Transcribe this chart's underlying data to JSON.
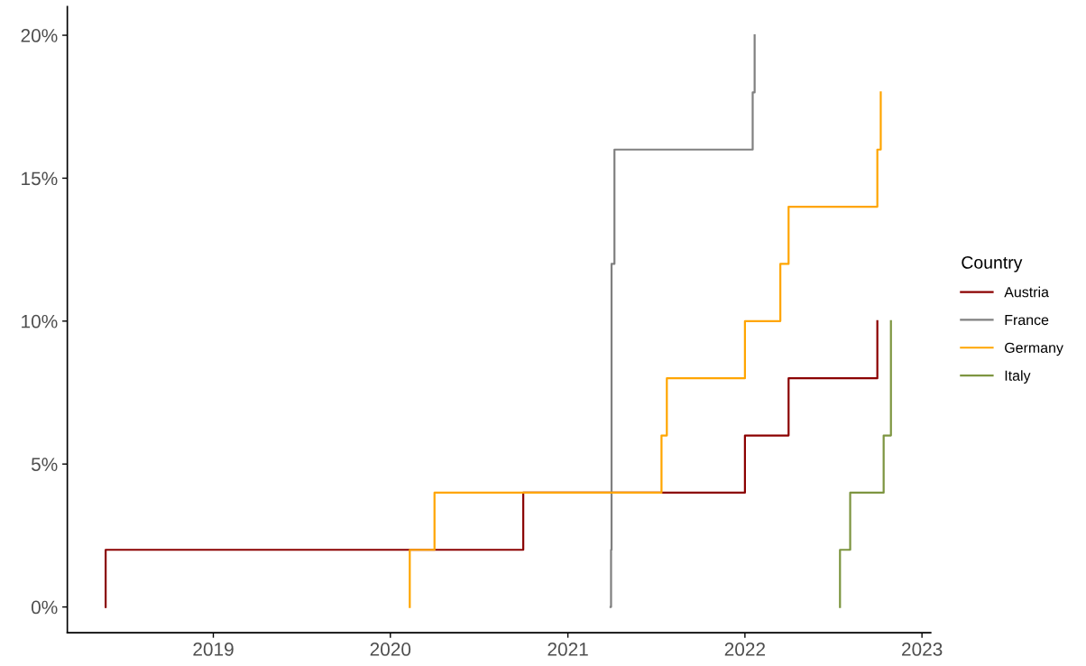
{
  "chart_data": {
    "type": "step",
    "legend_title": "Country",
    "legend": "right",
    "grid": false,
    "line_style": "solid",
    "marker": "none",
    "xlim": [
      "2018-03-06",
      "2023-01-19"
    ],
    "xticks": [
      "2019",
      "2020",
      "2021",
      "2022",
      "2023"
    ],
    "ylim": [
      -0.9,
      21
    ],
    "yticks": [
      {
        "value": 0,
        "label": "0%"
      },
      {
        "value": 5,
        "label": "5%"
      },
      {
        "value": 10,
        "label": "10%"
      },
      {
        "value": 15,
        "label": "15%"
      },
      {
        "value": 20,
        "label": "20%"
      }
    ],
    "series": [
      {
        "name": "Austria",
        "color": "#8b0000",
        "x": [
          "2018-05-24",
          "2018-05-24",
          "2020-10-01",
          "2022-01-01",
          "2022-04-01",
          "2022-10-01"
        ],
        "values": [
          0,
          2,
          4,
          6,
          8,
          10
        ]
      },
      {
        "name": "France",
        "color": "#808080",
        "x": [
          "2021-03-30",
          "2021-03-31",
          "2021-04-01",
          "2021-04-07",
          "2022-01-17",
          "2022-01-21"
        ],
        "values": [
          0,
          2,
          12,
          16,
          18,
          20
        ]
      },
      {
        "name": "Germany",
        "color": "#ffa500",
        "x": [
          "2020-02-10",
          "2020-02-10",
          "2020-04-01",
          "2021-07-13",
          "2021-07-24",
          "2022-01-01",
          "2022-03-15",
          "2022-04-01",
          "2022-10-01",
          "2022-10-08"
        ],
        "values": [
          0,
          2,
          4,
          6,
          8,
          10,
          12,
          14,
          16,
          18
        ]
      },
      {
        "name": "Italy",
        "color": "#7d9540",
        "x": [
          "2022-07-16",
          "2022-07-16",
          "2022-08-06",
          "2022-10-14",
          "2022-10-29"
        ],
        "values": [
          0,
          2,
          4,
          6,
          10
        ]
      }
    ]
  }
}
